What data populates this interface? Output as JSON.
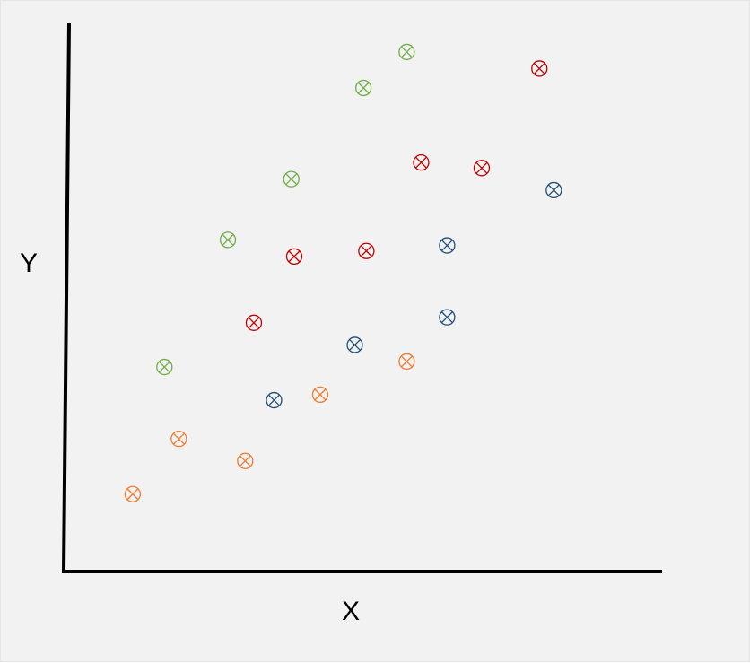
{
  "chart_data": {
    "type": "scatter",
    "title": "",
    "xlabel": "X",
    "ylabel": "Y",
    "xlim": [
      0,
      10
    ],
    "ylim": [
      0,
      10
    ],
    "grid": false,
    "legend": "none",
    "marker": "circled-x",
    "series": [
      {
        "color": "#ed7d31",
        "points": [
          [
            1.15,
            1.4
          ],
          [
            1.95,
            2.4
          ],
          [
            3.1,
            2.0
          ],
          [
            4.4,
            3.2
          ],
          [
            5.9,
            3.8
          ]
        ]
      },
      {
        "color": "#70ad47",
        "points": [
          [
            1.7,
            3.7
          ],
          [
            2.8,
            6.0
          ],
          [
            3.9,
            7.1
          ],
          [
            5.15,
            8.75
          ],
          [
            5.9,
            9.4
          ]
        ]
      },
      {
        "color": "#c00000",
        "points": [
          [
            3.25,
            4.5
          ],
          [
            3.95,
            5.7
          ],
          [
            5.2,
            5.8
          ],
          [
            6.15,
            7.4
          ],
          [
            7.2,
            7.3
          ],
          [
            8.2,
            9.1
          ]
        ]
      },
      {
        "color": "#1f4e79",
        "points": [
          [
            3.6,
            3.1
          ],
          [
            5.0,
            4.1
          ],
          [
            6.6,
            4.6
          ],
          [
            6.6,
            5.9
          ],
          [
            8.45,
            6.9
          ]
        ]
      }
    ]
  }
}
